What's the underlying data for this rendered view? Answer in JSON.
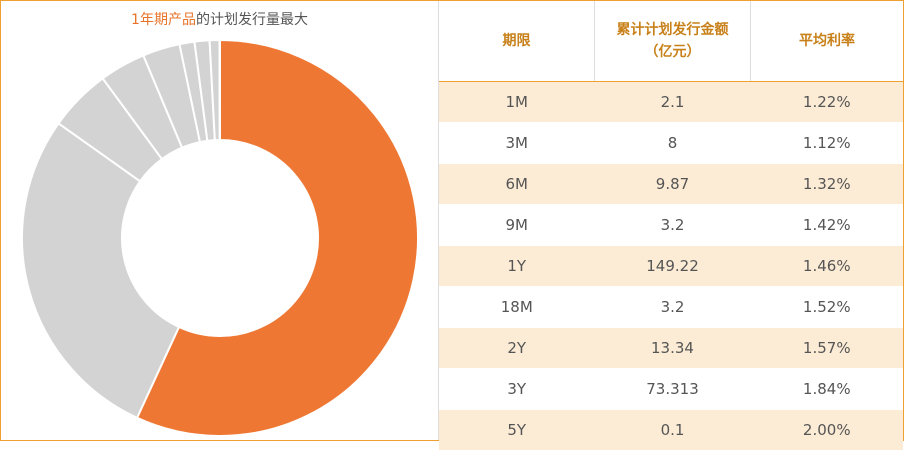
{
  "title": {
    "highlight": "1年期产品",
    "rest": "的计划发行量最大"
  },
  "colors": {
    "highlight": "#ee7733",
    "other": "#d3d3d3",
    "border": "#f0a030",
    "header_text": "#c8811a",
    "row_alt": "#fcecd6"
  },
  "table": {
    "headers": [
      "期限",
      "累计计划发行金额",
      "（亿元）",
      "平均利率"
    ],
    "rows": [
      [
        "1M",
        "2.1",
        "1.22%"
      ],
      [
        "3M",
        "8",
        "1.12%"
      ],
      [
        "6M",
        "9.87",
        "1.32%"
      ],
      [
        "9M",
        "3.2",
        "1.42%"
      ],
      [
        "1Y",
        "149.22",
        "1.46%"
      ],
      [
        "18M",
        "3.2",
        "1.52%"
      ],
      [
        "2Y",
        "13.34",
        "1.57%"
      ],
      [
        "3Y",
        "73.313",
        "1.84%"
      ],
      [
        "5Y",
        "0.1",
        "2.00%"
      ]
    ]
  },
  "chart_data": {
    "type": "pie",
    "donut": true,
    "categories": [
      "1Y",
      "3Y",
      "2Y",
      "6M",
      "3M",
      "9M",
      "18M",
      "1M",
      "5Y"
    ],
    "values": [
      149.22,
      73.313,
      13.34,
      9.87,
      8,
      3.2,
      3.2,
      2.1,
      0.1
    ],
    "highlight": "1Y",
    "start": "top",
    "direction": "clockwise"
  }
}
